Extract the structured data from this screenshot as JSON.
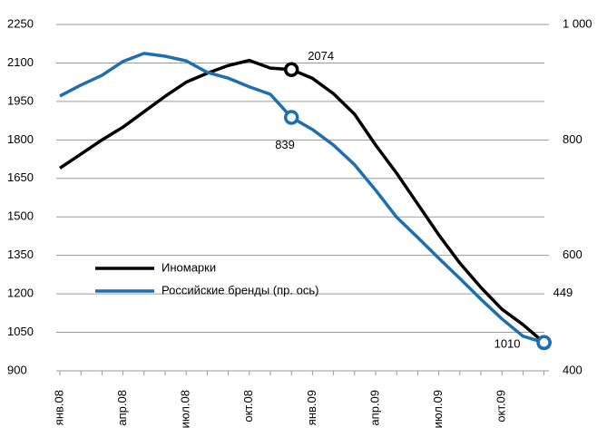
{
  "chart_data": {
    "type": "line",
    "categories": [
      "янв.08",
      null,
      null,
      "апр.08",
      null,
      null,
      "июл.08",
      null,
      null,
      "окт.08",
      null,
      null,
      "янв.09",
      null,
      null,
      "апр.09",
      null,
      null,
      "июл.09",
      null,
      null,
      "окт.09",
      null,
      null
    ],
    "series": [
      {
        "name": "Иномарки",
        "color": "#000000",
        "values": [
          1690,
          1745,
          1800,
          1850,
          1910,
          1970,
          2025,
          2060,
          2090,
          2110,
          2080,
          2074,
          2040,
          1980,
          1900,
          1780,
          1670,
          1550,
          1430,
          1320,
          1225,
          1140,
          1080,
          1010
        ],
        "labeled": [
          11,
          23
        ]
      },
      {
        "name": "Российские бренды (пр. ось)",
        "color": "#1f6fb0",
        "axis": "y2",
        "values": [
          876,
          895,
          912,
          936,
          950,
          945,
          937,
          917,
          907,
          892,
          879,
          839,
          818,
          791,
          757,
          713,
          666,
          631,
          595,
          560,
          524,
          490,
          460,
          449
        ],
        "labeled": [
          11,
          23
        ]
      }
    ],
    "ylim": [
      900,
      2250
    ],
    "yticks": [
      900,
      1050,
      1200,
      1350,
      1500,
      1650,
      1800,
      1950,
      2100,
      2250
    ],
    "y2lim": [
      400,
      1000
    ],
    "y2ticks": [
      400,
      600,
      800,
      {
        "value": 1000,
        "label": "1 000"
      }
    ],
    "grid": true
  }
}
